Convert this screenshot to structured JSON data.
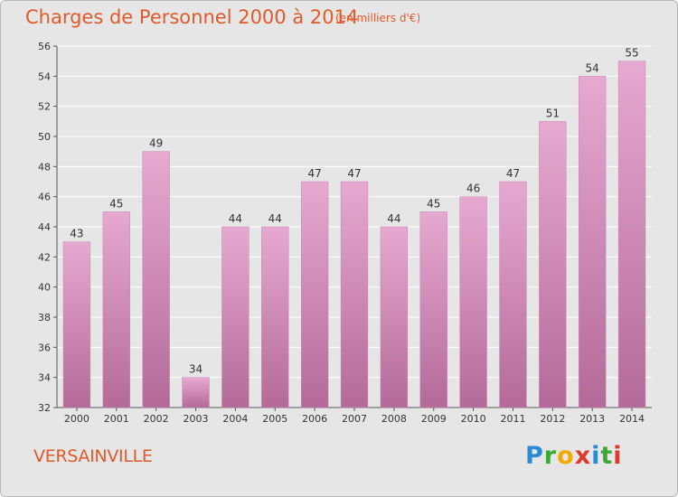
{
  "header": {
    "title": "Charges de Personnel 2000 à 2014",
    "subtitle": "(en milliers d'€)"
  },
  "footer": {
    "commune": "VERSAINVILLE",
    "logo_letters": [
      "P",
      "r",
      "o",
      "x",
      "i",
      "t",
      "i"
    ],
    "logo_colors": [
      "#2a8ad4",
      "#3aaa35",
      "#f2a900",
      "#e03a2a",
      "#2a8ad4",
      "#3aaa35",
      "#e03a2a"
    ]
  },
  "colors": {
    "bar_light": "#e6a9d0",
    "bar_dark": "#b46a98",
    "text": "#333333",
    "grid": "#ffffff",
    "background": "#e6e6e6"
  },
  "chart_data": {
    "type": "bar",
    "title": "Charges de Personnel 2000 à 2014",
    "subtitle": "(en milliers d'€)",
    "categories": [
      "2000",
      "2001",
      "2002",
      "2003",
      "2004",
      "2005",
      "2006",
      "2007",
      "2008",
      "2009",
      "2010",
      "2011",
      "2012",
      "2013",
      "2014"
    ],
    "values": [
      43,
      45,
      49,
      34,
      44,
      44,
      47,
      47,
      44,
      45,
      46,
      47,
      51,
      54,
      55
    ],
    "ylim": [
      32,
      56
    ],
    "yticks": [
      32,
      34,
      36,
      38,
      40,
      42,
      44,
      46,
      48,
      50,
      52,
      54,
      56
    ],
    "grid": true,
    "xlabel": "",
    "ylabel": ""
  }
}
